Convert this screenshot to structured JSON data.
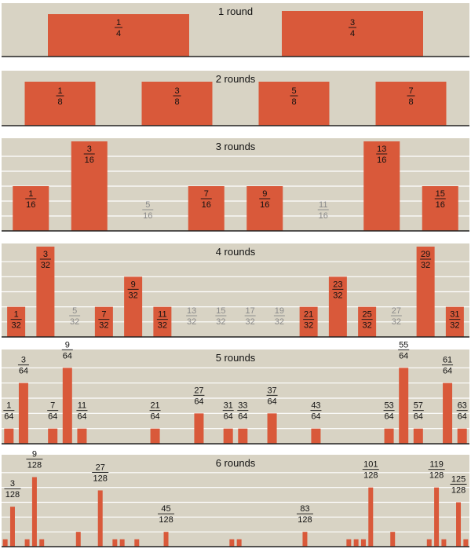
{
  "colors": {
    "panel": "#d8d3c4",
    "bar": "#d9593a",
    "grid": "#ffffff",
    "text": "#111111",
    "muted": "#8a8a8a",
    "axis": "#222222"
  },
  "chart_data": [
    {
      "type": "bar",
      "title": "1 round",
      "x_range": [
        0,
        1
      ],
      "bars": [
        {
          "x": "1/4",
          "h": 5,
          "labeled": true
        },
        {
          "x": "3/4",
          "h": 5,
          "labeled": true
        }
      ]
    },
    {
      "type": "bar",
      "title": "2 rounds",
      "x_range": [
        0,
        1
      ],
      "bars": [
        {
          "x": "1/8",
          "h": 5,
          "labeled": true
        },
        {
          "x": "3/8",
          "h": 5,
          "labeled": true
        },
        {
          "x": "5/8",
          "h": 5,
          "labeled": true
        },
        {
          "x": "7/8",
          "h": 5,
          "labeled": true
        }
      ]
    },
    {
      "type": "bar",
      "title": "3 rounds",
      "x_range": [
        0,
        1
      ],
      "bars": [
        {
          "x": "1/16",
          "h": 3,
          "labeled": true
        },
        {
          "x": "3/16",
          "h": 6,
          "labeled": true
        },
        {
          "x": "5/16",
          "h": 0,
          "labeled": true
        },
        {
          "x": "7/16",
          "h": 3,
          "labeled": true
        },
        {
          "x": "9/16",
          "h": 3,
          "labeled": true
        },
        {
          "x": "11/16",
          "h": 0,
          "labeled": true
        },
        {
          "x": "13/16",
          "h": 6,
          "labeled": true
        },
        {
          "x": "15/16",
          "h": 3,
          "labeled": true
        }
      ]
    },
    {
      "type": "bar",
      "title": "4 rounds",
      "x_range": [
        0,
        1
      ],
      "bars": [
        {
          "x": "1/32",
          "h": 2,
          "labeled": true
        },
        {
          "x": "3/32",
          "h": 6,
          "labeled": true
        },
        {
          "x": "5/32",
          "h": 0,
          "labeled": true
        },
        {
          "x": "7/32",
          "h": 2,
          "labeled": true
        },
        {
          "x": "9/32",
          "h": 4,
          "labeled": true
        },
        {
          "x": "11/32",
          "h": 2,
          "labeled": true
        },
        {
          "x": "13/32",
          "h": 0,
          "labeled": true
        },
        {
          "x": "15/32",
          "h": 0,
          "labeled": true
        },
        {
          "x": "17/32",
          "h": 0,
          "labeled": true
        },
        {
          "x": "19/32",
          "h": 0,
          "labeled": true
        },
        {
          "x": "21/32",
          "h": 2,
          "labeled": true
        },
        {
          "x": "23/32",
          "h": 4,
          "labeled": true
        },
        {
          "x": "25/32",
          "h": 2,
          "labeled": true
        },
        {
          "x": "27/32",
          "h": 0,
          "labeled": true
        },
        {
          "x": "29/32",
          "h": 6,
          "labeled": true
        },
        {
          "x": "31/32",
          "h": 2,
          "labeled": true
        }
      ]
    },
    {
      "type": "bar",
      "title": "5 rounds",
      "x_range": [
        0,
        1
      ],
      "bars": [
        {
          "x": "1/64",
          "h": 1,
          "labeled": true
        },
        {
          "x": "3/64",
          "h": 4,
          "labeled": true
        },
        {
          "x": "7/64",
          "h": 1,
          "labeled": true
        },
        {
          "x": "9/64",
          "h": 5,
          "labeled": true
        },
        {
          "x": "11/64",
          "h": 1,
          "labeled": true
        },
        {
          "x": "21/64",
          "h": 1,
          "labeled": true
        },
        {
          "x": "27/64",
          "h": 2,
          "labeled": true
        },
        {
          "x": "31/64",
          "h": 1,
          "labeled": true
        },
        {
          "x": "33/64",
          "h": 1,
          "labeled": true
        },
        {
          "x": "37/64",
          "h": 2,
          "labeled": true
        },
        {
          "x": "43/64",
          "h": 1,
          "labeled": true
        },
        {
          "x": "53/64",
          "h": 1,
          "labeled": true
        },
        {
          "x": "55/64",
          "h": 5,
          "labeled": true
        },
        {
          "x": "57/64",
          "h": 1,
          "labeled": true
        },
        {
          "x": "61/64",
          "h": 4,
          "labeled": true
        },
        {
          "x": "63/64",
          "h": 1,
          "labeled": true
        }
      ]
    },
    {
      "type": "bar",
      "title": "6 rounds",
      "x_range": [
        0,
        1
      ],
      "bars": [
        {
          "x": "1/128",
          "h": 0.5,
          "labeled": false
        },
        {
          "x": "3/128",
          "h": 2.7,
          "labeled": true
        },
        {
          "x": "7/128",
          "h": 0.5,
          "labeled": false
        },
        {
          "x": "9/128",
          "h": 4.7,
          "labeled": true
        },
        {
          "x": "11/128",
          "h": 0.5,
          "labeled": false
        },
        {
          "x": "21/128",
          "h": 1,
          "labeled": false
        },
        {
          "x": "27/128",
          "h": 3.8,
          "labeled": true
        },
        {
          "x": "31/128",
          "h": 0.5,
          "labeled": false
        },
        {
          "x": "33/128",
          "h": 0.5,
          "labeled": false
        },
        {
          "x": "37/128",
          "h": 0.5,
          "labeled": false
        },
        {
          "x": "45/128",
          "h": 1,
          "labeled": true
        },
        {
          "x": "63/128",
          "h": 0.5,
          "labeled": false
        },
        {
          "x": "65/128",
          "h": 0.5,
          "labeled": false
        },
        {
          "x": "83/128",
          "h": 1,
          "labeled": true
        },
        {
          "x": "95/128",
          "h": 0.5,
          "labeled": false
        },
        {
          "x": "97/128",
          "h": 0.5,
          "labeled": false
        },
        {
          "x": "99/128",
          "h": 0.5,
          "labeled": false
        },
        {
          "x": "101/128",
          "h": 4,
          "labeled": true
        },
        {
          "x": "107/128",
          "h": 1,
          "labeled": false
        },
        {
          "x": "117/128",
          "h": 0.5,
          "labeled": false
        },
        {
          "x": "119/128",
          "h": 4,
          "labeled": true
        },
        {
          "x": "121/128",
          "h": 0.5,
          "labeled": false
        },
        {
          "x": "125/128",
          "h": 3,
          "labeled": true
        },
        {
          "x": "127/128",
          "h": 0.5,
          "labeled": false
        }
      ]
    }
  ]
}
